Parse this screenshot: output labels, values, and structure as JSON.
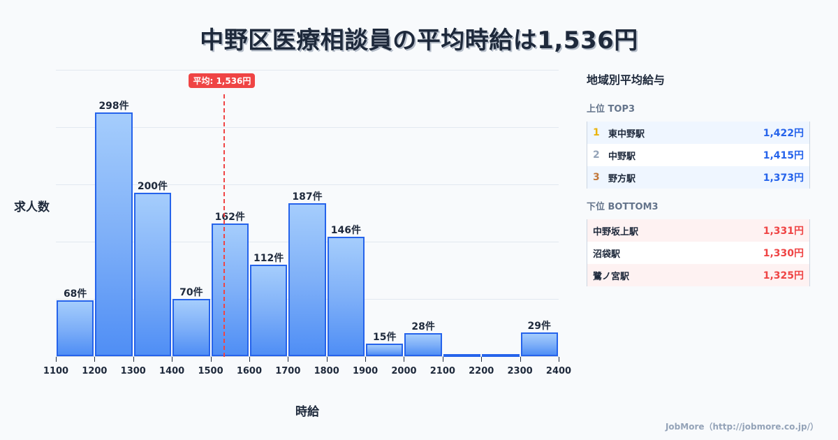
{
  "title": "中野区医療相談員の平均時給は1,536円",
  "chart_data": {
    "type": "bar",
    "title": "中野区医療相談員の平均時給は1,536円",
    "xlabel": "時給",
    "ylabel": "求人数",
    "categories": [
      "1100-1200",
      "1200-1300",
      "1300-1400",
      "1400-1500",
      "1500-1600",
      "1600-1700",
      "1700-1800",
      "1800-1900",
      "1900-2000",
      "2000-2100",
      "2100-2200",
      "2200-2300",
      "2300-2400"
    ],
    "bin_edges": [
      1100,
      1200,
      1300,
      1400,
      1500,
      1600,
      1700,
      1800,
      1900,
      2000,
      2100,
      2200,
      2300,
      2400
    ],
    "values": [
      68,
      298,
      200,
      70,
      162,
      112,
      187,
      146,
      15,
      28,
      0,
      0,
      29
    ],
    "value_labels": [
      "68件",
      "298件",
      "200件",
      "70件",
      "162件",
      "112件",
      "187件",
      "146件",
      "15件",
      "28件",
      "",
      "",
      "29件"
    ],
    "x_tick_labels": [
      "1100",
      "1200",
      "1300",
      "1400",
      "1500",
      "1600",
      "1700",
      "1800",
      "1900",
      "2000",
      "2100",
      "2200",
      "2300",
      "2400"
    ],
    "xlim": [
      1100,
      2400
    ],
    "ylim": [
      0,
      350
    ],
    "grid": true,
    "mean": 1536,
    "mean_label": "平均: 1,536円",
    "colors": {
      "bar_fill_top": "#a5cdfc",
      "bar_fill_bottom": "#4f8ef5",
      "bar_border": "#2563eb",
      "mean_line": "#ef4444"
    }
  },
  "panel": {
    "title": "地域別平均給与",
    "top_title": "上位 TOP3",
    "top": [
      {
        "rank": "1",
        "name": "東中野駅",
        "value": "1,422円",
        "rank_color": "#eab308"
      },
      {
        "rank": "2",
        "name": "中野駅",
        "value": "1,415円",
        "rank_color": "#94a3b8"
      },
      {
        "rank": "3",
        "name": "野方駅",
        "value": "1,373円",
        "rank_color": "#c2783a"
      }
    ],
    "bottom_title": "下位 BOTTOM3",
    "bottom": [
      {
        "name": "中野坂上駅",
        "value": "1,331円"
      },
      {
        "name": "沼袋駅",
        "value": "1,330円"
      },
      {
        "name": "鷺ノ宮駅",
        "value": "1,325円"
      }
    ]
  },
  "footer": "JobMore（http://jobmore.co.jp/）"
}
